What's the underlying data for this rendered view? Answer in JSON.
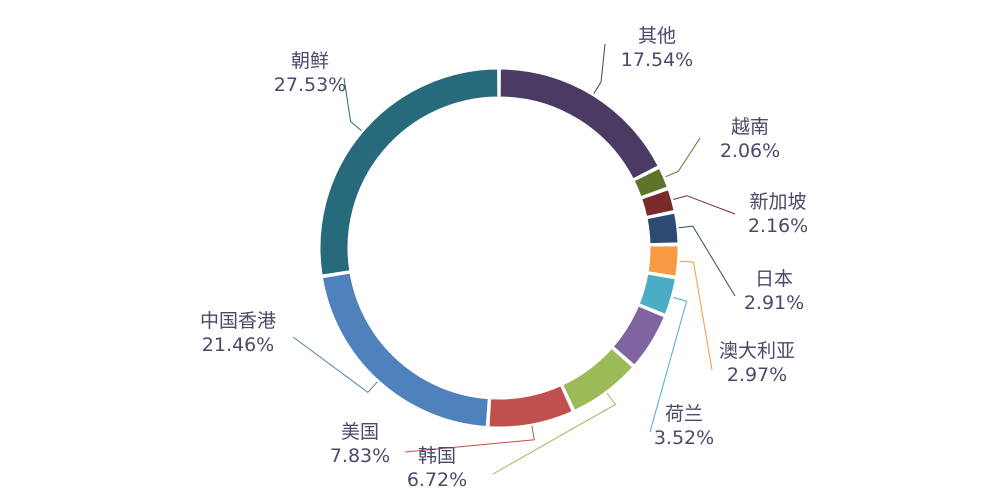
{
  "chart_data": {
    "type": "pie",
    "variant": "donut",
    "title": "",
    "legend": "none",
    "slices": [
      {
        "name": "其他",
        "value": 17.54,
        "label": "17.54%",
        "color": "#4b3a63"
      },
      {
        "name": "越南",
        "value": 2.06,
        "label": "2.06%",
        "color": "#5e742b"
      },
      {
        "name": "新加坡",
        "value": 2.16,
        "label": "2.16%",
        "color": "#7a2a2a"
      },
      {
        "name": "日本",
        "value": 2.91,
        "label": "2.91%",
        "color": "#2d4a72"
      },
      {
        "name": "澳大利亚",
        "value": 2.97,
        "label": "2.97%",
        "color": "#f79a43"
      },
      {
        "name": "荷兰",
        "value": 3.52,
        "label": "3.52%",
        "color": "#4bacc6"
      },
      {
        "name": "",
        "value": 5.3,
        "label": "",
        "color": "#8064a2"
      },
      {
        "name": "韩国",
        "value": 6.72,
        "label": "6.72%",
        "color": "#9bbb59"
      },
      {
        "name": "美国",
        "value": 7.83,
        "label": "7.83%",
        "color": "#c0504d"
      },
      {
        "name": "中国香港",
        "value": 21.46,
        "label": "21.46%",
        "color": "#4f81bd"
      },
      {
        "name": "朝鲜",
        "value": 27.53,
        "label": "27.53%",
        "color": "#266a7c"
      }
    ]
  }
}
